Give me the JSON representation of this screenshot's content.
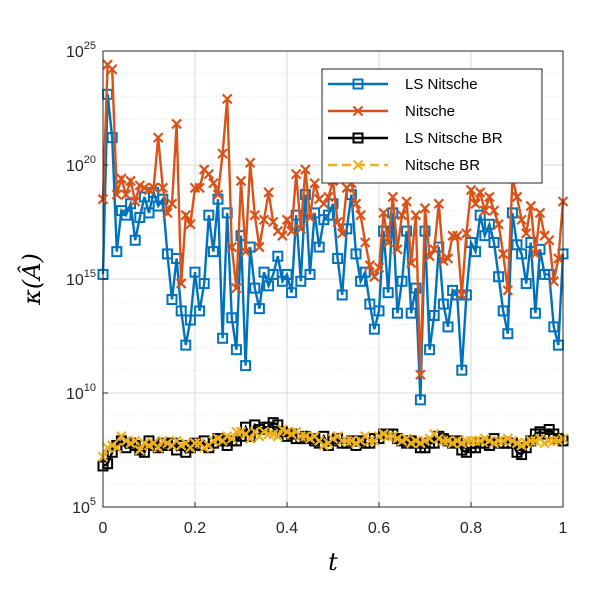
{
  "chart_data": {
    "type": "line",
    "xlabel": "t",
    "ylabel": "κ(Â)",
    "xlim": [
      0,
      1
    ],
    "ylim_log10": [
      5,
      25
    ],
    "y_scale": "log",
    "grid": true,
    "legend_position": "top-right",
    "x_ticks": [
      "0",
      "0.2",
      "0.4",
      "0.6",
      "0.8",
      "1"
    ],
    "y_ticks": [
      {
        "base": "10",
        "exp": "5"
      },
      {
        "base": "10",
        "exp": "10"
      },
      {
        "base": "10",
        "exp": "15"
      },
      {
        "base": "10",
        "exp": "20"
      },
      {
        "base": "10",
        "exp": "25"
      }
    ],
    "x": [
      0.0,
      0.01,
      0.02,
      0.03,
      0.04,
      0.05,
      0.06,
      0.07,
      0.08,
      0.09,
      0.1,
      0.11,
      0.12,
      0.13,
      0.14,
      0.15,
      0.16,
      0.17,
      0.18,
      0.19,
      0.2,
      0.21,
      0.22,
      0.23,
      0.24,
      0.25,
      0.26,
      0.27,
      0.28,
      0.29,
      0.3,
      0.31,
      0.32,
      0.33,
      0.34,
      0.35,
      0.36,
      0.37,
      0.38,
      0.39,
      0.4,
      0.41,
      0.42,
      0.43,
      0.44,
      0.45,
      0.46,
      0.47,
      0.48,
      0.49,
      0.5,
      0.51,
      0.52,
      0.53,
      0.54,
      0.55,
      0.56,
      0.57,
      0.58,
      0.59,
      0.6,
      0.61,
      0.62,
      0.63,
      0.64,
      0.65,
      0.66,
      0.67,
      0.68,
      0.69,
      0.7,
      0.71,
      0.72,
      0.73,
      0.74,
      0.75,
      0.76,
      0.77,
      0.78,
      0.79,
      0.8,
      0.81,
      0.82,
      0.83,
      0.84,
      0.85,
      0.86,
      0.87,
      0.88,
      0.89,
      0.9,
      0.91,
      0.92,
      0.93,
      0.94,
      0.95,
      0.96,
      0.97,
      0.98,
      0.99,
      1.0
    ],
    "series_log10": [
      {
        "name": "LS Nitsche",
        "color": "#0072BD",
        "marker": "square",
        "dash": "solid",
        "values": [
          15.2,
          23.1,
          21.2,
          16.2,
          18.0,
          17.8,
          18.3,
          16.7,
          17.7,
          18.6,
          17.9,
          18.8,
          18.2,
          18.5,
          16.1,
          14.1,
          15.9,
          13.6,
          12.1,
          13.2,
          15.3,
          13.6,
          14.8,
          17.8,
          16.2,
          18.5,
          12.4,
          17.9,
          13.3,
          11.9,
          16.9,
          11.2,
          16.4,
          14.6,
          13.7,
          15.3,
          14.7,
          15.2,
          16.0,
          14.9,
          15.2,
          14.4,
          17.8,
          14.9,
          18.7,
          15.2,
          17.9,
          16.4,
          17.6,
          17.8,
          18.3,
          15.9,
          14.3,
          17.2,
          18.7,
          16.1,
          14.9,
          15.3,
          13.9,
          12.8,
          13.6,
          17.1,
          14.4,
          17.9,
          13.5,
          14.9,
          17.1,
          13.5,
          14.6,
          9.7,
          17.1,
          11.9,
          13.4,
          16.4,
          13.9,
          12.9,
          14.5,
          14.3,
          11.0,
          14.3,
          16.6,
          16.2,
          17.8,
          16.9,
          17.4,
          16.6,
          15.1,
          13.6,
          12.6,
          17.9,
          16.5,
          16.1,
          14.8,
          16.6,
          13.5,
          16.3,
          15.2,
          15.2,
          12.9,
          12.1,
          16.1
        ]
      },
      {
        "name": "Nitsche",
        "color": "#D95319",
        "marker": "x",
        "dash": "solid",
        "values": [
          18.5,
          24.4,
          24.2,
          18.7,
          19.4,
          18.7,
          19.3,
          18.4,
          19.1,
          19.0,
          18.9,
          19.0,
          21.2,
          19.0,
          17.9,
          18.3,
          21.8,
          14.8,
          17.8,
          17.4,
          19.0,
          19.0,
          19.8,
          19.6,
          19.2,
          18.7,
          20.5,
          22.9,
          16.4,
          14.6,
          19.3,
          16.2,
          20.1,
          17.8,
          16.4,
          17.6,
          18.8,
          17.5,
          17.1,
          16.9,
          17.6,
          17.1,
          19.6,
          17.2,
          19.8,
          17.7,
          19.2,
          18.5,
          18.3,
          18.6,
          19.3,
          17.5,
          17.0,
          19.0,
          19.2,
          18.3,
          17.8,
          16.6,
          15.6,
          15.1,
          15.5,
          17.9,
          16.6,
          18.6,
          16.3,
          17.8,
          18.4,
          15.7,
          17.8,
          10.8,
          18.1,
          16.0,
          16.3,
          18.3,
          15.8,
          15.9,
          16.9,
          16.9,
          14.3,
          17.0,
          18.9,
          18.3,
          18.8,
          18.0,
          18.6,
          18.0,
          17.4,
          16.1,
          14.5,
          19.4,
          18.6,
          17.6,
          17.0,
          18.2,
          16.1,
          17.9,
          16.9,
          16.7,
          14.9,
          15.9,
          18.4
        ]
      },
      {
        "name": "LS Nitsche BR",
        "color": "#000000",
        "marker": "square",
        "dash": "solid",
        "values": [
          6.8,
          6.9,
          7.4,
          7.7,
          7.9,
          7.6,
          7.8,
          7.7,
          7.5,
          7.4,
          7.9,
          7.7,
          7.6,
          7.8,
          7.7,
          7.8,
          7.5,
          7.7,
          7.4,
          7.6,
          7.8,
          7.7,
          7.9,
          7.6,
          7.8,
          8.0,
          7.9,
          7.7,
          7.9,
          7.9,
          8.1,
          8.5,
          8.1,
          8.6,
          8.4,
          8.5,
          8.5,
          8.7,
          8.6,
          8.3,
          8.1,
          8.2,
          8.0,
          8.0,
          8.1,
          8.0,
          7.9,
          7.8,
          8.1,
          7.7,
          7.9,
          8.0,
          7.8,
          7.8,
          7.9,
          7.7,
          7.9,
          7.8,
          7.8,
          8.0,
          8.0,
          8.2,
          8.2,
          8.2,
          8.0,
          7.9,
          7.8,
          7.9,
          7.8,
          7.6,
          7.6,
          7.8,
          7.8,
          8.1,
          8.0,
          7.9,
          7.8,
          7.9,
          7.5,
          7.4,
          7.6,
          7.6,
          7.8,
          7.8,
          7.7,
          8.0,
          7.8,
          7.8,
          7.8,
          7.8,
          7.4,
          7.3,
          7.6,
          7.9,
          8.2,
          8.3,
          8.2,
          8.4,
          8.2,
          8.0,
          7.9
        ]
      },
      {
        "name": "Nitsche BR",
        "color": "#EDB120",
        "marker": "x",
        "dash": "dashed",
        "values": [
          7.2,
          7.6,
          7.7,
          7.6,
          8.1,
          7.9,
          7.8,
          7.9,
          7.5,
          7.8,
          7.7,
          7.8,
          7.6,
          7.9,
          7.8,
          7.7,
          7.9,
          7.7,
          7.8,
          7.6,
          7.8,
          7.8,
          7.6,
          7.7,
          7.9,
          8.0,
          7.9,
          8.1,
          8.0,
          8.3,
          8.3,
          8.2,
          8.0,
          8.3,
          8.1,
          8.3,
          8.2,
          8.2,
          8.1,
          8.4,
          8.3,
          8.2,
          8.3,
          8.1,
          8.1,
          8.0,
          8.1,
          7.9,
          7.7,
          7.8,
          8.0,
          8.1,
          7.9,
          7.9,
          7.9,
          7.8,
          7.9,
          8.1,
          7.9,
          7.9,
          8.1,
          8.2,
          8.1,
          8.1,
          8.0,
          7.9,
          8.0,
          7.8,
          7.9,
          7.8,
          7.9,
          8.0,
          8.2,
          8.0,
          7.9,
          7.9,
          7.8,
          7.9,
          7.8,
          7.9,
          7.9,
          7.9,
          7.9,
          8.0,
          7.9,
          7.8,
          7.9,
          7.9,
          8.0,
          7.9,
          7.8,
          7.7,
          7.8,
          7.9,
          7.9,
          8.0,
          7.8,
          7.9,
          7.9,
          7.9,
          8.0
        ]
      }
    ]
  }
}
